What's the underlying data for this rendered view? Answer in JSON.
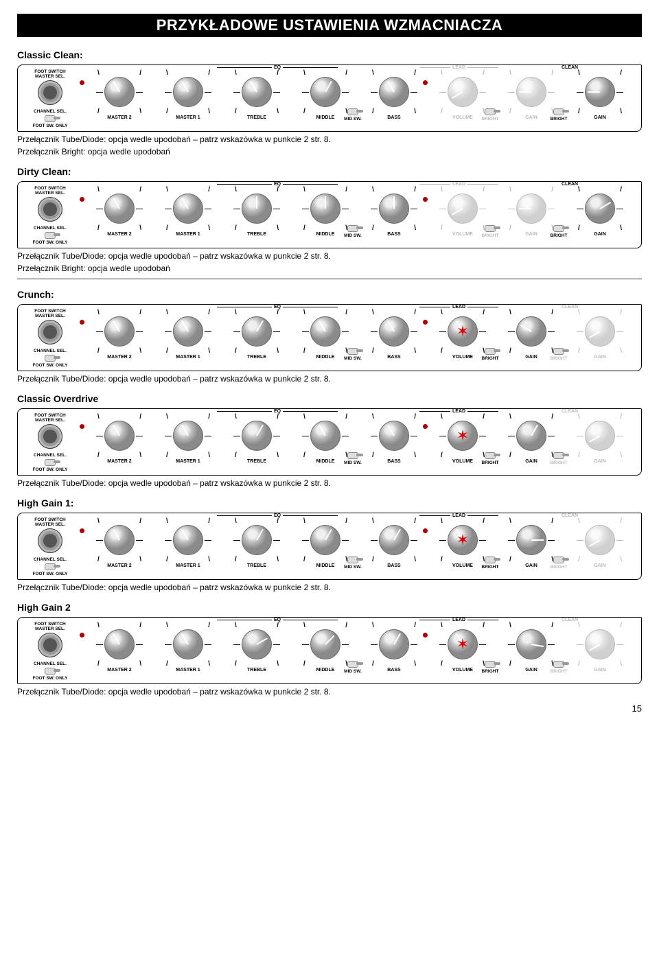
{
  "page_title": "PRZYKŁADOWE USTAWIENIA WZMACNIACZA",
  "page_number": "15",
  "common_note_tube": "Przełącznik Tube/Diode: opcja wedle upodobań – patrz wskazówka w punkcie 2 str. 8.",
  "common_note_bright": "Przełącznik Bright: opcja wedle upodobań",
  "left_labels": {
    "foot": "FOOT SWITCH\nMASTER SEL.",
    "chan": "CHANNEL SEL.",
    "foot_only": "FOOT SW. ONLY"
  },
  "knob_labels": [
    "MASTER 2",
    "MASTER 1",
    "TREBLE",
    "MIDDLE",
    "BASS",
    "VOLUME",
    "GAIN",
    "GAIN"
  ],
  "sub_switches": {
    "mid": "MID SW.",
    "bright": "BRIGHT"
  },
  "group_labels": {
    "eq": "EQ",
    "lead": "LEAD",
    "clean": "CLEAN"
  },
  "presets": [
    {
      "name": "Classic Clean:",
      "notes": [
        "tube",
        "bright"
      ],
      "angles": [
        -30,
        -30,
        -30,
        30,
        -30,
        -120,
        -90,
        -90
      ],
      "inactive": [
        false,
        false,
        false,
        false,
        false,
        true,
        true,
        false
      ],
      "clean_inactive": false,
      "lead_inactive": true,
      "redstar_on": null
    },
    {
      "name": "Dirty Clean:",
      "notes": [
        "tube",
        "bright"
      ],
      "angles": [
        -30,
        -30,
        0,
        0,
        0,
        -120,
        -90,
        60
      ],
      "inactive": [
        false,
        false,
        false,
        false,
        false,
        true,
        true,
        false
      ],
      "clean_inactive": false,
      "lead_inactive": true,
      "redstar_on": null,
      "rule_after": true
    },
    {
      "name": "Crunch:",
      "notes": [
        "tube"
      ],
      "angles": [
        -30,
        -30,
        30,
        -30,
        -30,
        -30,
        -60,
        -120
      ],
      "inactive": [
        false,
        false,
        false,
        false,
        false,
        false,
        false,
        true
      ],
      "clean_inactive": true,
      "lead_inactive": false,
      "redstar_on": 5
    },
    {
      "name": "Classic Overdrive",
      "notes": [
        "tube"
      ],
      "angles": [
        -30,
        -30,
        30,
        -30,
        -30,
        -30,
        30,
        -120
      ],
      "inactive": [
        false,
        false,
        false,
        false,
        false,
        false,
        false,
        true
      ],
      "clean_inactive": true,
      "lead_inactive": false,
      "redstar_on": 5
    },
    {
      "name": "High Gain 1:",
      "notes": [
        "tube"
      ],
      "angles": [
        -30,
        -30,
        30,
        30,
        30,
        -30,
        90,
        -120
      ],
      "inactive": [
        false,
        false,
        false,
        false,
        false,
        false,
        false,
        true
      ],
      "clean_inactive": true,
      "lead_inactive": false,
      "redstar_on": 5
    },
    {
      "name": "High Gain 2",
      "notes": [
        "tube"
      ],
      "angles": [
        -30,
        -30,
        60,
        45,
        30,
        -30,
        100,
        -120
      ],
      "inactive": [
        false,
        false,
        false,
        false,
        false,
        false,
        false,
        true
      ],
      "clean_inactive": true,
      "lead_inactive": false,
      "redstar_on": 5
    }
  ]
}
